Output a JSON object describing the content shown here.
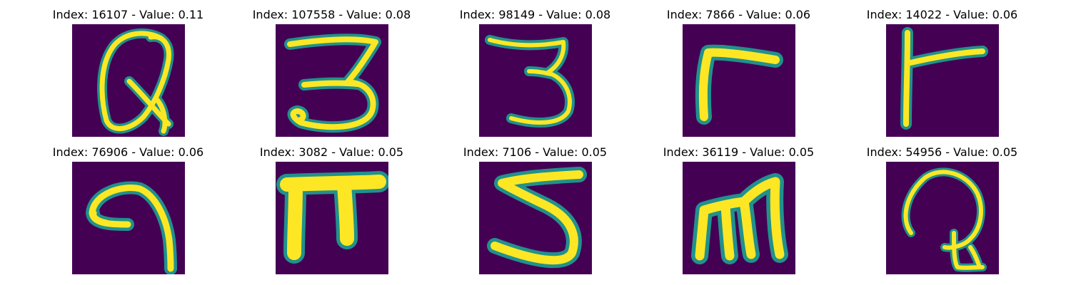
{
  "panels": [
    {
      "index_text": "Index: 16107 - Value: 0.11",
      "glyph": "Q"
    },
    {
      "index_text": "Index: 107558 - Value: 0.08",
      "glyph": "3"
    },
    {
      "index_text": "Index: 98149 - Value: 0.08",
      "glyph": "3"
    },
    {
      "index_text": "Index: 7866 - Value: 0.06",
      "glyph": "r"
    },
    {
      "index_text": "Index: 14022 - Value: 0.06",
      "glyph": "r"
    },
    {
      "index_text": "Index: 76906 - Value: 0.06",
      "glyph": "q"
    },
    {
      "index_text": "Index: 3082 - Value: 0.05",
      "glyph": "π"
    },
    {
      "index_text": "Index: 7106 - Value: 0.05",
      "glyph": "5"
    },
    {
      "index_text": "Index: 36119 - Value: 0.05",
      "glyph": "m"
    },
    {
      "index_text": "Index: 54956 - Value: 0.05",
      "glyph": "Q"
    }
  ],
  "colors": {
    "background": "#440154",
    "stroke_core": "#fde725",
    "stroke_edge": "#21918c",
    "stroke_mid": "#5ec962"
  }
}
